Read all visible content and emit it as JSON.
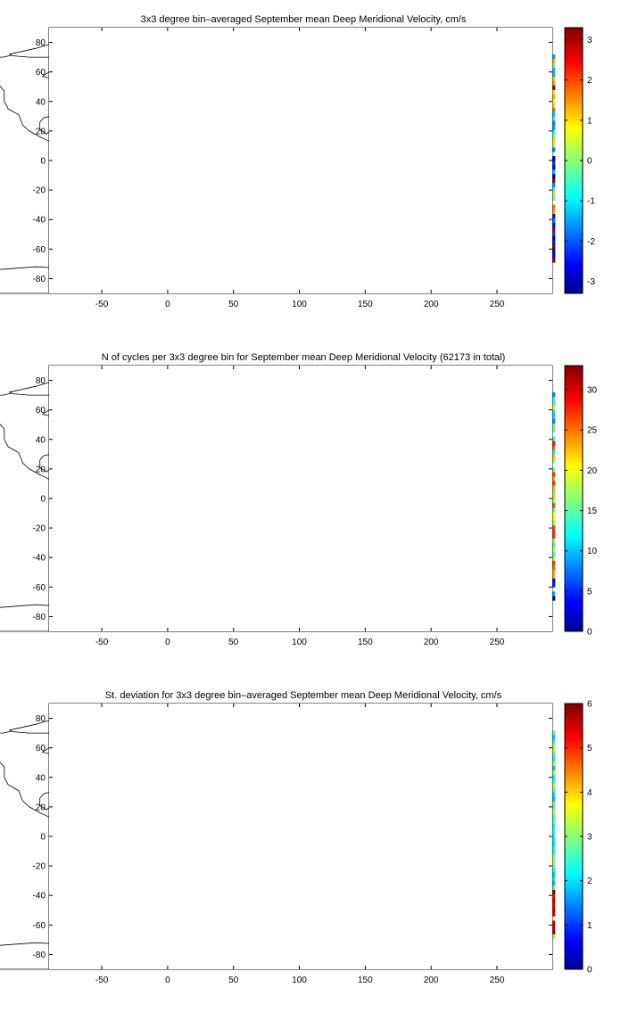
{
  "colormap": {
    "name": "jet",
    "stops": [
      "#00008f",
      "#0000ff",
      "#00ffff",
      "#ffff00",
      "#ff0000",
      "#800000"
    ]
  },
  "map_colors": {
    "background": "#ffffff",
    "coastline": "#000000",
    "grid": "#000000",
    "frame": "#000000"
  },
  "chart_data": [
    {
      "type": "heatmap",
      "title": "3x3 degree bin–averaged September mean Deep Meridional Velocity, cm/s",
      "xlabel": "",
      "ylabel": "",
      "xlim": [
        -90,
        292
      ],
      "ylim": [
        -90,
        90
      ],
      "x_ticks": [
        -50,
        0,
        50,
        100,
        150,
        200,
        250
      ],
      "y_ticks": [
        -80,
        -60,
        -40,
        -20,
        0,
        20,
        40,
        60,
        80
      ],
      "grid": true,
      "bin_size_deg": 3,
      "colorbar": {
        "min": -3.3,
        "max": 3.3,
        "ticks": [
          -3,
          -2,
          -1,
          0,
          1,
          2,
          3
        ]
      }
    },
    {
      "type": "heatmap",
      "title": "N of cycles per 3x3 degree bin for September mean Deep Meridional Velocity (62173 in total)",
      "xlabel": "",
      "ylabel": "",
      "xlim": [
        -90,
        292
      ],
      "ylim": [
        -90,
        90
      ],
      "x_ticks": [
        -50,
        0,
        50,
        100,
        150,
        200,
        250
      ],
      "y_ticks": [
        -80,
        -60,
        -40,
        -20,
        0,
        20,
        40,
        60,
        80
      ],
      "grid": true,
      "bin_size_deg": 3,
      "colorbar": {
        "min": 0,
        "max": 33,
        "ticks": [
          0,
          5,
          10,
          15,
          20,
          25,
          30
        ]
      }
    },
    {
      "type": "heatmap",
      "title": "St. deviation for 3x3 degree bin–averaged September mean Deep Meridional Velocity, cm/s",
      "xlabel": "",
      "ylabel": "",
      "xlim": [
        -90,
        292
      ],
      "ylim": [
        -90,
        90
      ],
      "x_ticks": [
        -50,
        0,
        50,
        100,
        150,
        200,
        250
      ],
      "y_ticks": [
        -80,
        -60,
        -40,
        -20,
        0,
        20,
        40,
        60,
        80
      ],
      "grid": true,
      "bin_size_deg": 3,
      "colorbar": {
        "min": 0,
        "max": 6,
        "ticks": [
          0,
          1,
          2,
          3,
          4,
          5,
          6
        ]
      }
    }
  ]
}
